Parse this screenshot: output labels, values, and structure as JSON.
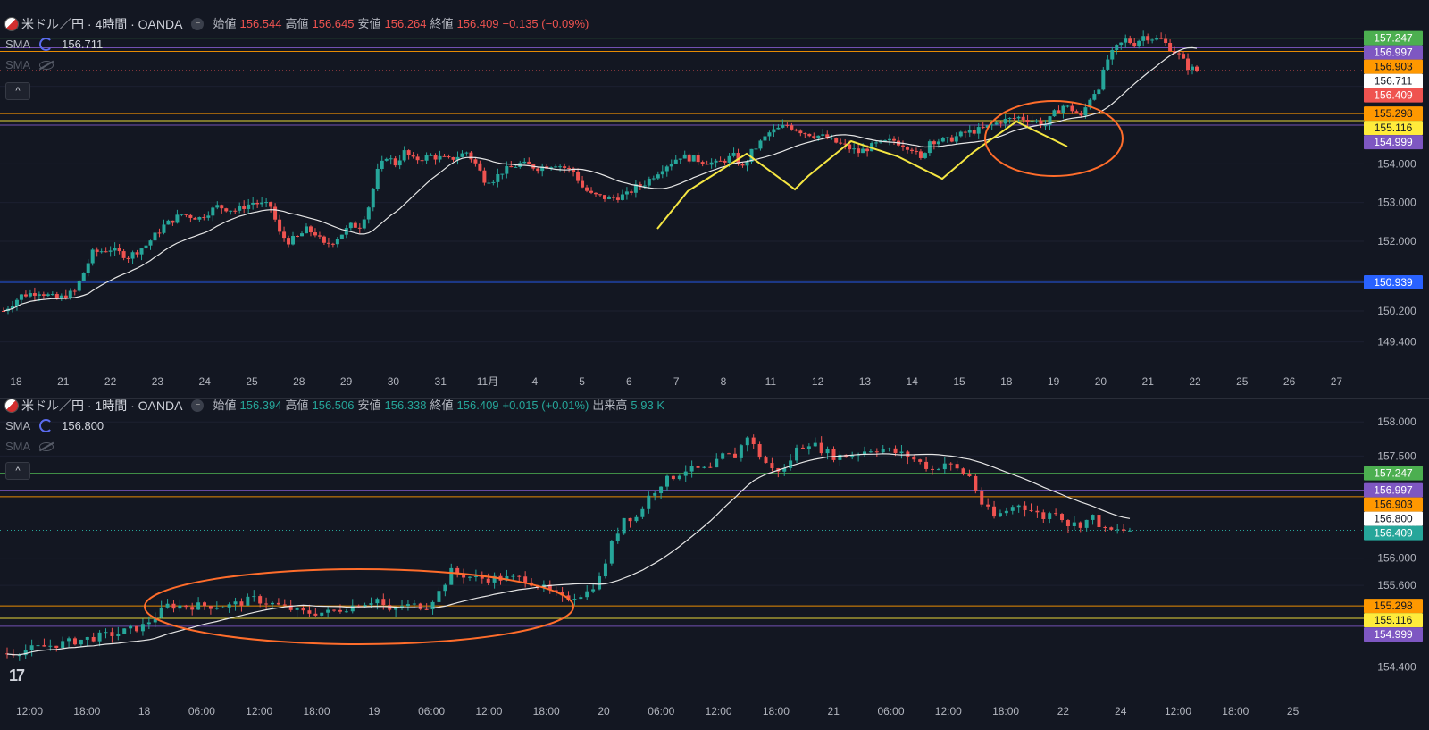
{
  "colors": {
    "background": "#131722",
    "up": "#26a69a",
    "down": "#ef5350",
    "sma": "#e6e6e6",
    "green_line": "#4caf50",
    "purple_line": "#7e57c2",
    "orange_line": "#ff9800",
    "yellow_line": "#ffeb3b",
    "blue_line": "#2962ff",
    "annotation_orange": "#ff6d2b",
    "annotation_yellow": "#f5e642"
  },
  "top": {
    "title": "米ドル／円 · 4時間 · OANDA",
    "open_label": "始値",
    "open": "156.544",
    "high_label": "高値",
    "high": "156.645",
    "low_label": "安値",
    "low": "156.264",
    "close_label": "終値",
    "close": "156.409",
    "change": "−0.135 (−0.09%)",
    "sma_label": "SMA",
    "sma_value": "156.711",
    "sma2_label": "SMA",
    "collapse": "^"
  },
  "bottom": {
    "title": "米ドル／円 · 1時間 · OANDA",
    "open_label": "始値",
    "open": "156.394",
    "high_label": "高値",
    "high": "156.506",
    "low_label": "安値",
    "low": "156.338",
    "close_label": "終値",
    "close": "156.409",
    "change": "+0.015 (+0.01%)",
    "volume_label": "出来高",
    "volume": "5.93 K",
    "sma_label": "SMA",
    "sma_value": "156.800",
    "sma2_label": "SMA",
    "collapse": "^"
  },
  "chart_data": [
    {
      "type": "candlestick",
      "title": "米ドル／円 · 4時間 · OANDA",
      "ylim": [
        149.0,
        158.0
      ],
      "y_ticks": [
        "149.400",
        "150.200",
        "151.000",
        "152.000",
        "153.000",
        "154.000",
        "156.000"
      ],
      "x_tick_labels": [
        "18",
        "21",
        "22",
        "23",
        "24",
        "25",
        "28",
        "29",
        "30",
        "31",
        "11月",
        "4",
        "5",
        "6",
        "7",
        "8",
        "11",
        "12",
        "13",
        "14",
        "15",
        "18",
        "19",
        "20",
        "21",
        "22",
        "25",
        "26",
        "27"
      ],
      "price_tags": [
        {
          "value": 157.247,
          "label": "157.247",
          "color": "#4caf50"
        },
        {
          "value": 156.997,
          "label": "156.997",
          "color": "#7e57c2"
        },
        {
          "value": 156.903,
          "label": "156.903",
          "color": "#ff9800"
        },
        {
          "value": 156.711,
          "label": "156.711",
          "color": "#ffffff"
        },
        {
          "value": 156.409,
          "label": "156.409",
          "color": "#ef5350"
        },
        {
          "value": 155.298,
          "label": "155.298",
          "color": "#ff9800"
        },
        {
          "value": 155.116,
          "label": "155.116",
          "color": "#ffeb3b"
        },
        {
          "value": 154.999,
          "label": "154.999",
          "color": "#7e57c2"
        },
        {
          "value": 150.939,
          "label": "150.939",
          "color": "#2962ff"
        }
      ],
      "waypoints": [
        [
          0,
          150.2
        ],
        [
          4,
          150.6
        ],
        [
          8,
          150.7
        ],
        [
          12,
          150.5
        ],
        [
          16,
          150.7
        ],
        [
          20,
          151.7
        ],
        [
          24,
          151.8
        ],
        [
          28,
          151.6
        ],
        [
          32,
          151.9
        ],
        [
          36,
          152.4
        ],
        [
          40,
          152.7
        ],
        [
          44,
          152.6
        ],
        [
          48,
          152.9
        ],
        [
          52,
          152.8
        ],
        [
          56,
          153.0
        ],
        [
          60,
          152.9
        ],
        [
          62,
          152.2
        ],
        [
          64,
          152.0
        ],
        [
          66,
          152.1
        ],
        [
          68,
          152.3
        ],
        [
          70,
          152.2
        ],
        [
          72,
          151.9
        ],
        [
          74,
          152.0
        ],
        [
          76,
          152.2
        ],
        [
          78,
          152.4
        ],
        [
          80,
          152.4
        ],
        [
          82,
          152.9
        ],
        [
          84,
          153.8
        ],
        [
          86,
          154.2
        ],
        [
          88,
          154.0
        ],
        [
          90,
          154.3
        ],
        [
          92,
          154.1
        ],
        [
          96,
          154.2
        ],
        [
          100,
          154.1
        ],
        [
          104,
          154.3
        ],
        [
          106,
          154.0
        ],
        [
          108,
          153.6
        ],
        [
          110,
          153.6
        ],
        [
          112,
          153.8
        ],
        [
          116,
          154.0
        ],
        [
          120,
          153.9
        ],
        [
          124,
          154.0
        ],
        [
          128,
          153.8
        ],
        [
          130,
          153.4
        ],
        [
          132,
          153.2
        ],
        [
          136,
          153.1
        ],
        [
          140,
          153.2
        ],
        [
          142,
          153.4
        ],
        [
          144,
          153.5
        ],
        [
          148,
          153.9
        ],
        [
          152,
          154.2
        ],
        [
          156,
          154.1
        ],
        [
          160,
          154.0
        ],
        [
          164,
          154.2
        ],
        [
          166,
          153.9
        ],
        [
          168,
          154.3
        ],
        [
          172,
          154.8
        ],
        [
          176,
          155.0
        ],
        [
          180,
          154.8
        ],
        [
          184,
          154.7
        ],
        [
          188,
          154.5
        ],
        [
          192,
          154.3
        ],
        [
          196,
          154.5
        ],
        [
          200,
          154.6
        ],
        [
          204,
          154.4
        ],
        [
          206,
          154.1
        ],
        [
          208,
          154.6
        ],
        [
          212,
          154.6
        ],
        [
          216,
          154.8
        ],
        [
          220,
          154.9
        ],
        [
          224,
          155.1
        ],
        [
          228,
          155.2
        ],
        [
          232,
          155.1
        ],
        [
          234,
          155.0
        ],
        [
          236,
          155.3
        ],
        [
          238,
          155.5
        ],
        [
          240,
          155.4
        ],
        [
          242,
          155.2
        ],
        [
          244,
          155.7
        ],
        [
          246,
          156.0
        ],
        [
          248,
          156.7
        ],
        [
          250,
          157.0
        ],
        [
          252,
          157.2
        ],
        [
          254,
          157.1
        ],
        [
          256,
          157.3
        ],
        [
          260,
          157.2
        ],
        [
          262,
          157.0
        ],
        [
          264,
          156.8
        ],
        [
          266,
          156.5
        ],
        [
          268,
          156.4
        ]
      ]
    },
    {
      "type": "candlestick",
      "title": "米ドル／円 · 1時間 · OANDA",
      "ylim": [
        154.0,
        158.2
      ],
      "y_ticks": [
        "154.400",
        "155.600",
        "156.000",
        "156.500",
        "157.500",
        "158.000"
      ],
      "x_tick_labels": [
        "12:00",
        "18:00",
        "18",
        "06:00",
        "12:00",
        "18:00",
        "19",
        "06:00",
        "12:00",
        "18:00",
        "20",
        "06:00",
        "12:00",
        "18:00",
        "21",
        "06:00",
        "12:00",
        "18:00",
        "22",
        "24",
        "12:00",
        "18:00",
        "25"
      ],
      "price_tags": [
        {
          "value": 157.247,
          "label": "157.247",
          "color": "#4caf50"
        },
        {
          "value": 156.997,
          "label": "156.997",
          "color": "#7e57c2"
        },
        {
          "value": 156.903,
          "label": "156.903",
          "color": "#ff9800"
        },
        {
          "value": 156.8,
          "label": "156.800",
          "color": "#ffffff"
        },
        {
          "value": 156.409,
          "label": "156.409",
          "color": "#26a69a"
        },
        {
          "value": 155.298,
          "label": "155.298",
          "color": "#ff9800"
        },
        {
          "value": 155.116,
          "label": "155.116",
          "color": "#ffeb3b"
        },
        {
          "value": 154.999,
          "label": "154.999",
          "color": "#7e57c2"
        }
      ],
      "waypoints": [
        [
          0,
          154.6
        ],
        [
          6,
          154.7
        ],
        [
          12,
          154.8
        ],
        [
          18,
          154.9
        ],
        [
          22,
          155.0
        ],
        [
          26,
          155.3
        ],
        [
          30,
          155.3
        ],
        [
          36,
          155.3
        ],
        [
          40,
          155.4
        ],
        [
          44,
          155.3
        ],
        [
          48,
          155.2
        ],
        [
          52,
          155.2
        ],
        [
          56,
          155.3
        ],
        [
          60,
          155.4
        ],
        [
          62,
          155.2
        ],
        [
          64,
          155.3
        ],
        [
          68,
          155.3
        ],
        [
          70,
          155.5
        ],
        [
          72,
          155.8
        ],
        [
          76,
          155.7
        ],
        [
          80,
          155.7
        ],
        [
          84,
          155.7
        ],
        [
          88,
          155.5
        ],
        [
          90,
          155.4
        ],
        [
          94,
          155.5
        ],
        [
          96,
          155.7
        ],
        [
          98,
          156.2
        ],
        [
          100,
          156.6
        ],
        [
          102,
          156.6
        ],
        [
          104,
          156.9
        ],
        [
          106,
          157.1
        ],
        [
          108,
          157.2
        ],
        [
          110,
          157.3
        ],
        [
          114,
          157.3
        ],
        [
          116,
          157.5
        ],
        [
          118,
          157.5
        ],
        [
          120,
          157.8
        ],
        [
          122,
          157.5
        ],
        [
          124,
          157.3
        ],
        [
          126,
          157.3
        ],
        [
          128,
          157.6
        ],
        [
          130,
          157.7
        ],
        [
          132,
          157.6
        ],
        [
          134,
          157.5
        ],
        [
          136,
          157.5
        ],
        [
          140,
          157.6
        ],
        [
          142,
          157.6
        ],
        [
          146,
          157.5
        ],
        [
          148,
          157.4
        ],
        [
          150,
          157.3
        ],
        [
          152,
          157.4
        ],
        [
          154,
          157.3
        ],
        [
          156,
          157.2
        ],
        [
          158,
          156.8
        ],
        [
          160,
          156.6
        ],
        [
          162,
          156.7
        ],
        [
          164,
          156.8
        ],
        [
          166,
          156.7
        ],
        [
          168,
          156.6
        ],
        [
          170,
          156.7
        ],
        [
          172,
          156.5
        ],
        [
          174,
          156.5
        ],
        [
          176,
          156.6
        ],
        [
          178,
          156.4
        ],
        [
          180,
          156.4
        ],
        [
          182,
          156.41
        ]
      ]
    }
  ]
}
